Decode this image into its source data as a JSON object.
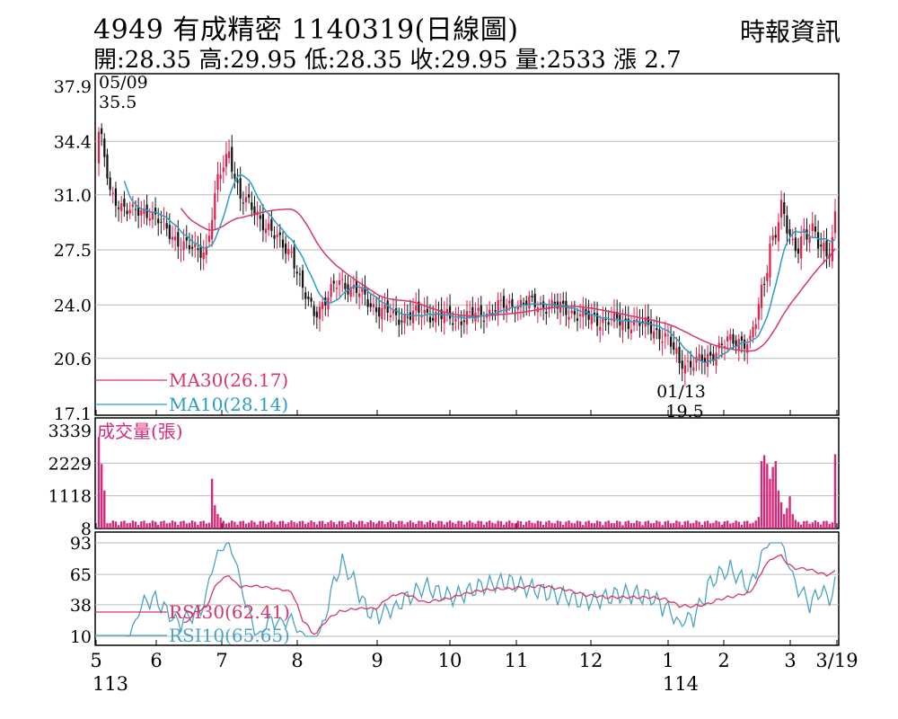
{
  "header": {
    "title_line": "4949  有成精密 1140319(日線圖)",
    "ohlc_line": "開:28.35 高:29.95 低:28.35 收:29.95 量:2533 漲 2.7",
    "source": "時報資訊"
  },
  "colors": {
    "up": "#e11d48",
    "down": "#111111",
    "ma30": "#d6366b",
    "ma10": "#2a9dc4",
    "volume": "#d42a7a",
    "rsi30": "#d6366b",
    "rsi10": "#4aa3c2",
    "grid": "#bbbbbb"
  },
  "chart_data": [
    {
      "type": "candlestick",
      "panel": "price",
      "y_ticks": [
        "37.9",
        "34.4",
        "31.0",
        "27.5",
        "24.0",
        "20.6",
        "17.1"
      ],
      "ylim": [
        17.1,
        37.9
      ],
      "annotations": [
        {
          "label": "05/09",
          "value": "35.5",
          "kind": "high"
        },
        {
          "label": "01/13",
          "value": "19.5",
          "kind": "low"
        }
      ],
      "legend": [
        {
          "name": "MA30",
          "value": "(26.17)"
        },
        {
          "name": "MA10",
          "value": "(28.14)"
        }
      ]
    },
    {
      "type": "bar",
      "panel": "volume",
      "title": "成交量(張)",
      "y_ticks": [
        "3339",
        "2229",
        "1118",
        "8"
      ],
      "ylim": [
        8,
        3339
      ]
    },
    {
      "type": "line",
      "panel": "rsi",
      "y_ticks": [
        "93",
        "65",
        "38",
        "10"
      ],
      "ylim": [
        10,
        93
      ],
      "legend": [
        {
          "name": "RSI30",
          "value": "(62.41)"
        },
        {
          "name": "RSI10",
          "value": "(65.65)"
        }
      ]
    }
  ],
  "x_axis": {
    "months": [
      "5",
      "6",
      "7",
      "8",
      "9",
      "10",
      "11",
      "12",
      "1",
      "2",
      "3",
      "3/19"
    ],
    "years": [
      "113",
      "114"
    ]
  }
}
